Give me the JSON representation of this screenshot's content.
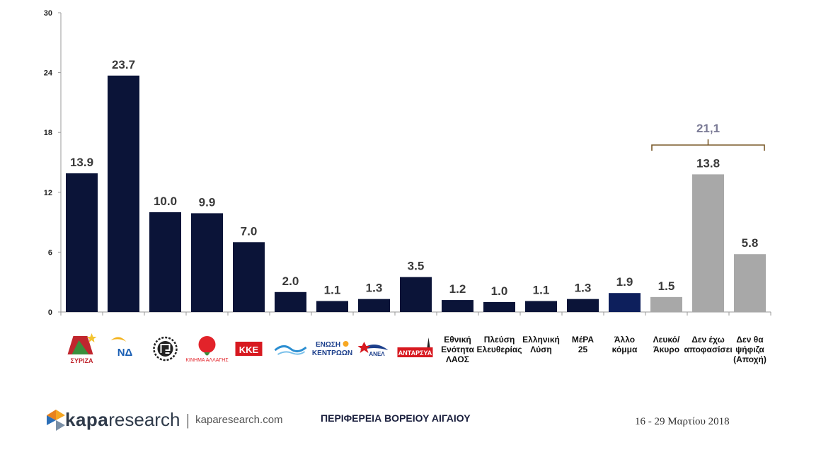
{
  "chart_data": {
    "type": "bar",
    "categories": [
      {
        "id": "syriza",
        "text": "ΣΥΡΙΖΑ",
        "kind": "logo"
      },
      {
        "id": "nd",
        "text": "ΝΔ",
        "kind": "logo"
      },
      {
        "id": "xa",
        "text": "",
        "kind": "logo"
      },
      {
        "id": "kinal",
        "text": "ΚΙΝΗΜΑ ΑΛΛΑΓΗΣ",
        "kind": "logo"
      },
      {
        "id": "kke",
        "text": "ΚΚΕ",
        "kind": "logo"
      },
      {
        "id": "potami",
        "text": "",
        "kind": "logo"
      },
      {
        "id": "enosi",
        "text": "ΕΝΩΣΗ ΚΕΝΤΡΩΩΝ",
        "kind": "logo"
      },
      {
        "id": "anel",
        "text": "ΑΝΕΛ",
        "kind": "logo"
      },
      {
        "id": "antarsya",
        "text": "ΑΝΤΑΡΣΥΑ",
        "kind": "logo"
      },
      {
        "id": "laos",
        "text": "Εθνική Ενότητα ΛΑΟΣ",
        "kind": "text",
        "lines": [
          "Εθνική",
          "Ενότητα",
          "ΛΑΟΣ"
        ]
      },
      {
        "id": "plefsi",
        "text": "Πλεύση Ελευθερίας",
        "kind": "text",
        "lines": [
          "Πλεύση",
          "Ελευθερίας"
        ]
      },
      {
        "id": "ellisi",
        "text": "Ελληνική Λύση",
        "kind": "text",
        "lines": [
          "Ελληνική",
          "Λύση"
        ]
      },
      {
        "id": "mera25",
        "text": "ΜέΡΑ 25",
        "kind": "text",
        "lines": [
          "ΜέΡΑ",
          "25"
        ]
      },
      {
        "id": "allo",
        "text": "Άλλο κόμμα",
        "kind": "text",
        "lines": [
          "Άλλο",
          "κόμμα"
        ]
      },
      {
        "id": "lefko",
        "text": "Λευκό/ Άκυρο",
        "kind": "text",
        "lines": [
          "Λευκό/",
          "Άκυρο"
        ]
      },
      {
        "id": "anapof",
        "text": "Δεν έχω αποφασίσει",
        "kind": "text",
        "lines": [
          "Δεν έχω",
          "αποφασίσει"
        ]
      },
      {
        "id": "apoxi",
        "text": "Δεν θα ψήφιζα (Αποχή)",
        "kind": "text",
        "lines": [
          "Δεν θα",
          "ψήφιζα",
          "(Αποχή)"
        ]
      }
    ],
    "values": [
      13.9,
      23.7,
      10.0,
      9.9,
      7.0,
      2.0,
      1.1,
      1.3,
      3.5,
      1.2,
      1.0,
      1.1,
      1.3,
      1.9,
      1.5,
      13.8,
      5.8
    ],
    "value_labels": [
      "13.9",
      "23.7",
      "10.0",
      "9.9",
      "7.0",
      "2.0",
      "1.1",
      "1.3",
      "3.5",
      "1.2",
      "1.0",
      "1.1",
      "1.3",
      "1.9",
      "1.5",
      "13.8",
      "5.8"
    ],
    "bar_colors": [
      "#0b1438",
      "#0b1438",
      "#0b1438",
      "#0b1438",
      "#0b1438",
      "#0b1438",
      "#0b1438",
      "#0b1438",
      "#0b1438",
      "#0b1438",
      "#0b1438",
      "#0b1438",
      "#0b1438",
      "#0d1f5c",
      "#a8a8a8",
      "#a8a8a8",
      "#a8a8a8"
    ],
    "ylim": [
      0,
      30
    ],
    "yticks": [
      0,
      6,
      12,
      18,
      24,
      30
    ],
    "title": "",
    "xlabel": "",
    "ylabel": "",
    "grid": false,
    "bracket": {
      "label": "21,1",
      "from_index": 14,
      "to_index": 16,
      "color": "#7a5a2a",
      "label_color": "#7b7b96"
    }
  },
  "footer": {
    "logo_kapa": "kapa",
    "logo_research": "research",
    "separator": "|",
    "site": "kaparesearch.com",
    "region": "ΠΕΡΙΦΕΡΕΙΑ ΒΟΡΕΙΟΥ ΑΙΓΑΙΟΥ",
    "date": "16 - 29 Μαρτίου 2018"
  }
}
